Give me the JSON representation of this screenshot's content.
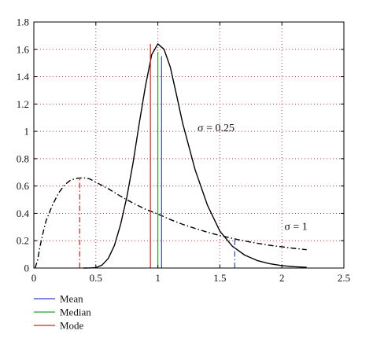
{
  "chart_data": {
    "type": "line",
    "title": "",
    "xlabel": "",
    "ylabel": "",
    "xlim": [
      0,
      2.5
    ],
    "ylim": [
      0,
      1.8
    ],
    "grid": true,
    "x_ticks": [
      "0",
      "0.5",
      "1",
      "1.5",
      "2",
      "2.5"
    ],
    "y_ticks": [
      "0",
      "0.2",
      "0.4",
      "0.6",
      "0.8",
      "1",
      "1.2",
      "1.4",
      "1.6",
      "1.8"
    ],
    "series": [
      {
        "label": "σ = 0.25",
        "style": "solid",
        "color": "#000000",
        "points": [
          [
            0.4,
            0.0
          ],
          [
            0.45,
            0.0005
          ],
          [
            0.5,
            0.003
          ],
          [
            0.55,
            0.022
          ],
          [
            0.6,
            0.07
          ],
          [
            0.65,
            0.165
          ],
          [
            0.7,
            0.32
          ],
          [
            0.75,
            0.52
          ],
          [
            0.8,
            0.77
          ],
          [
            0.85,
            1.06
          ],
          [
            0.9,
            1.33
          ],
          [
            0.95,
            1.56
          ],
          [
            1.0,
            1.64
          ],
          [
            1.05,
            1.6
          ],
          [
            1.1,
            1.47
          ],
          [
            1.15,
            1.27
          ],
          [
            1.2,
            1.06
          ],
          [
            1.3,
            0.72
          ],
          [
            1.4,
            0.46
          ],
          [
            1.5,
            0.27
          ],
          [
            1.6,
            0.16
          ],
          [
            1.7,
            0.095
          ],
          [
            1.8,
            0.055
          ],
          [
            1.9,
            0.032
          ],
          [
            2.0,
            0.018
          ],
          [
            2.1,
            0.01
          ],
          [
            2.2,
            0.005
          ]
        ]
      },
      {
        "label": "σ = 1",
        "style": "dashdot",
        "color": "#000000",
        "points": [
          [
            0.01,
            0.0
          ],
          [
            0.03,
            0.055
          ],
          [
            0.05,
            0.16
          ],
          [
            0.08,
            0.28
          ],
          [
            0.1,
            0.35
          ],
          [
            0.15,
            0.46
          ],
          [
            0.2,
            0.55
          ],
          [
            0.25,
            0.61
          ],
          [
            0.3,
            0.645
          ],
          [
            0.35,
            0.657
          ],
          [
            0.4,
            0.66
          ],
          [
            0.45,
            0.652
          ],
          [
            0.5,
            0.628
          ],
          [
            0.6,
            0.58
          ],
          [
            0.7,
            0.525
          ],
          [
            0.8,
            0.475
          ],
          [
            0.9,
            0.43
          ],
          [
            1.0,
            0.395
          ],
          [
            1.1,
            0.355
          ],
          [
            1.2,
            0.32
          ],
          [
            1.3,
            0.29
          ],
          [
            1.4,
            0.262
          ],
          [
            1.5,
            0.238
          ],
          [
            1.6,
            0.217
          ],
          [
            1.7,
            0.198
          ],
          [
            1.8,
            0.182
          ],
          [
            1.9,
            0.167
          ],
          [
            2.0,
            0.155
          ],
          [
            2.1,
            0.144
          ],
          [
            2.2,
            0.134
          ]
        ]
      }
    ],
    "markers": [
      {
        "curve": "σ = 0.25",
        "kind": "Mode",
        "x": 0.94,
        "y": 1.64,
        "color": "#e0201a",
        "style": "solid"
      },
      {
        "curve": "σ = 0.25",
        "kind": "Median",
        "x": 1.0,
        "y": 1.58,
        "color": "#2ca02c",
        "style": "solid"
      },
      {
        "curve": "σ = 0.25",
        "kind": "Mean",
        "x": 1.03,
        "y": 1.55,
        "color": "#3344cc",
        "style": "solid"
      },
      {
        "curve": "σ = 1",
        "kind": "Mode",
        "x": 0.37,
        "y": 0.66,
        "color": "#e0201a",
        "style": "dashdot"
      },
      {
        "curve": "σ = 1",
        "kind": "Mean",
        "x": 1.62,
        "y": 0.22,
        "color": "#3344cc",
        "style": "dashdot"
      }
    ],
    "annotations": [
      {
        "text": "σ = 0.25",
        "x": 1.32,
        "y": 1.0
      },
      {
        "text": "σ = 1",
        "x": 2.02,
        "y": 0.28
      }
    ],
    "legend": {
      "placement": "bottom-left",
      "entries": [
        {
          "label": "Mean",
          "color": "#3344cc"
        },
        {
          "label": "Median",
          "color": "#2ca02c"
        },
        {
          "label": "Mode",
          "color": "#e0201a"
        }
      ]
    }
  }
}
